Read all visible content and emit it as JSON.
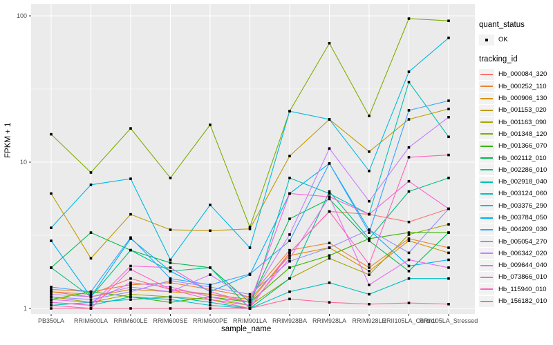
{
  "figure": {
    "background": "#FFFFFF",
    "panel_bg": "#EBEBEB",
    "grid_color": "#FFFFFF",
    "tick_color": "#333333",
    "tick_label_color": "#4D4D4D",
    "axis_title_color": "#000000",
    "point_color": "#000000",
    "legend_key_bg": "#F2F2F2"
  },
  "legend": {
    "quant_status": {
      "title": "quant_status",
      "items": [
        {
          "label": "OK",
          "marker": "point",
          "color": "#000000"
        }
      ]
    },
    "tracking": {
      "title": "tracking_id"
    }
  },
  "chart_data": {
    "type": "line",
    "title": "",
    "xlabel": "sample_name",
    "ylabel": "FPKM + 1",
    "y_scale": "log10",
    "grid": true,
    "legend_position": "right",
    "y_ticks": [
      1,
      10,
      100
    ],
    "y_tick_labels": [
      "1",
      "10",
      "100"
    ],
    "y_minor_ticks": [
      3.1623,
      31.623
    ],
    "ylim": [
      0.92,
      121
    ],
    "categories": [
      "PB350LA",
      "RRIM600LA",
      "RRIM600LE",
      "RRIM600SE",
      "RRIM600PE",
      "RRIM901LA",
      "RRIM928BA",
      "RRIM928LA",
      "RRIM928LE",
      "RRII105LA_Control",
      "RRII105LA_Stressed"
    ],
    "series": [
      {
        "name": "Hb_000084_320",
        "color": "#F8766D",
        "values": [
          1.3,
          1.25,
          1.6,
          1.35,
          1.25,
          1.1,
          2.4,
          4.6,
          4.4,
          3.9,
          4.8
        ]
      },
      {
        "name": "Hb_000252_110",
        "color": "#EA8331",
        "values": [
          1.35,
          1.3,
          1.45,
          1.5,
          1.35,
          1.2,
          2.5,
          2.8,
          1.9,
          3.0,
          2.6
        ]
      },
      {
        "name": "Hb_000906_130",
        "color": "#D89000",
        "values": [
          1.3,
          1.2,
          1.35,
          1.3,
          1.25,
          1.15,
          2.3,
          2.6,
          1.8,
          2.9,
          2.4
        ]
      },
      {
        "name": "Hb_001153_020",
        "color": "#C09B00",
        "values": [
          6.1,
          2.2,
          4.4,
          3.45,
          3.4,
          3.5,
          11.0,
          19.6,
          11.8,
          19.6,
          23.1
        ]
      },
      {
        "name": "Hb_001163_090",
        "color": "#A3A500",
        "values": [
          1.2,
          1.1,
          1.25,
          1.2,
          1.15,
          1.05,
          1.6,
          2.2,
          1.7,
          3.2,
          3.76
        ]
      },
      {
        "name": "Hb_001348_120",
        "color": "#7CAE00",
        "values": [
          15.5,
          8.5,
          17.0,
          7.8,
          18.0,
          3.6,
          22.3,
          65.0,
          20.7,
          95.7,
          92.5
        ]
      },
      {
        "name": "Hb_001366_070",
        "color": "#39B600",
        "values": [
          1.15,
          1.3,
          1.2,
          1.1,
          1.2,
          1.1,
          1.9,
          2.3,
          3.0,
          3.3,
          3.3
        ]
      },
      {
        "name": "Hb_002112_010",
        "color": "#00BB4E",
        "values": [
          1.9,
          3.3,
          2.5,
          2.05,
          1.9,
          1.1,
          4.1,
          5.6,
          2.9,
          1.8,
          3.3
        ]
      },
      {
        "name": "Hb_002286_010",
        "color": "#00C087",
        "values": [
          1.9,
          1.2,
          2.5,
          1.8,
          1.9,
          1.0,
          1.6,
          6.3,
          3.0,
          6.3,
          7.8
        ]
      },
      {
        "name": "Hb_002918_040",
        "color": "#00C0B2",
        "values": [
          1.05,
          1.1,
          1.15,
          1.2,
          1.1,
          1.0,
          7.8,
          6.1,
          4.4,
          35.3,
          14.9
        ]
      },
      {
        "name": "Hb_003124_060",
        "color": "#00BFC4",
        "values": [
          1.1,
          1.05,
          1.2,
          1.15,
          1.05,
          1.0,
          1.3,
          1.5,
          1.25,
          1.6,
          1.6
        ]
      },
      {
        "name": "Hb_003376_290",
        "color": "#00BAE0",
        "values": [
          3.56,
          7.0,
          7.7,
          2.15,
          5.1,
          2.6,
          22.3,
          19.6,
          8.7,
          41.5,
          70.7
        ]
      },
      {
        "name": "Hb_003784_050",
        "color": "#00B0F6",
        "values": [
          2.9,
          1.2,
          3.0,
          1.8,
          1.3,
          1.7,
          6.1,
          9.8,
          3.45,
          1.95,
          2.15
        ]
      },
      {
        "name": "Hb_004209_030",
        "color": "#35A2FF",
        "values": [
          1.4,
          1.3,
          3.05,
          1.6,
          1.45,
          1.72,
          2.9,
          9.8,
          3.3,
          22.6,
          26.3
        ]
      },
      {
        "name": "Hb_005054_270",
        "color": "#9590FF",
        "values": [
          1.2,
          1.15,
          1.3,
          1.55,
          1.4,
          1.25,
          2.1,
          2.6,
          3.45,
          2.4,
          4.8
        ]
      },
      {
        "name": "Hb_006342_020",
        "color": "#C77CFF",
        "values": [
          1.25,
          1.2,
          1.4,
          1.3,
          1.7,
          1.15,
          3.2,
          12.4,
          5.4,
          12.6,
          20.3
        ]
      },
      {
        "name": "Hb_009644_040",
        "color": "#E76BF3",
        "values": [
          1.15,
          1.1,
          1.5,
          1.4,
          1.2,
          1.05,
          2.2,
          5.8,
          1.45,
          2.15,
          1.9
        ]
      },
      {
        "name": "Hb_073866_010",
        "color": "#FA62DB",
        "values": [
          1.1,
          1.05,
          1.95,
          1.9,
          1.3,
          1.1,
          6.1,
          5.8,
          4.4,
          7.4,
          4.8
        ]
      },
      {
        "name": "Hb_115940_010",
        "color": "#FF62BC",
        "values": [
          1.05,
          1.0,
          1.85,
          1.35,
          1.15,
          1.0,
          2.4,
          4.6,
          2.0,
          10.8,
          11.2
        ]
      },
      {
        "name": "Hb_156182_010",
        "color": "#FF6A98",
        "values": [
          1.0,
          1.0,
          1.0,
          1.0,
          1.0,
          1.0,
          1.16,
          1.1,
          1.07,
          1.09,
          1.07
        ]
      }
    ]
  }
}
